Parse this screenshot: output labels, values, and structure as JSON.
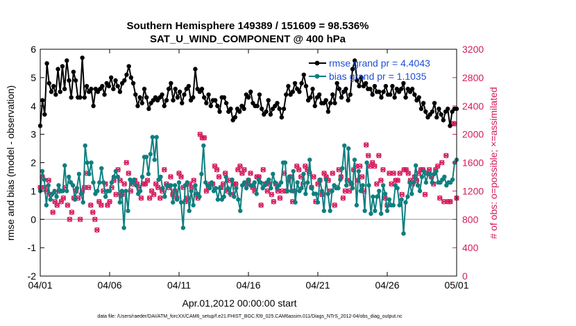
{
  "chart_data": {
    "type": "line",
    "title": "Southern Hemisphere 149389 / 151609 = 98.536%",
    "subtitle": "SAT_U_WIND_COMPONENT @ 400 hPa",
    "xlabel": "Apr.01,2012 00:00:00 start",
    "ylabel_left": "rmse and bias (model - observation)",
    "ylabel_right": "# of obs: o=possible; ×=assimilated",
    "xlim": [
      0,
      30
    ],
    "ylim_left": [
      -2,
      6
    ],
    "ylim_right": [
      0,
      3200
    ],
    "x_ticks": [
      0,
      5,
      10,
      15,
      20,
      25,
      30
    ],
    "x_tick_labels": [
      "04/01",
      "04/06",
      "04/11",
      "04/16",
      "04/21",
      "04/26",
      "05/01"
    ],
    "y_ticks_left": [
      -2,
      -1,
      0,
      1,
      2,
      3,
      4,
      5,
      6
    ],
    "y_ticks_right": [
      0,
      400,
      800,
      1200,
      1600,
      2000,
      2400,
      2800,
      3200
    ],
    "zero_line": 0,
    "series": [
      {
        "name": "rmse grand pr = 4.4043",
        "color": "#000000",
        "axis": "left",
        "values": [
          3.3,
          4.2,
          3.7,
          5.5,
          4.8,
          4.5,
          4.7,
          4.4,
          5.3,
          4.5,
          5.4,
          4.6,
          5.6,
          4.9,
          4.3,
          5.2,
          4.9,
          4.3,
          4.3,
          5.7,
          4.3,
          4.7,
          4.5,
          4.6,
          4.0,
          4.6,
          4.5,
          4.6,
          4.7,
          4.4,
          4.8,
          4.7,
          5.0,
          4.6,
          4.9,
          4.7,
          4.5,
          4.8,
          4.9,
          5.1,
          5.4,
          5.0,
          4.8,
          4.4,
          4.0,
          4.3,
          4.1,
          4.6,
          4.3,
          3.9,
          4.1,
          4.2,
          4.3,
          4.2,
          4.3,
          4.4,
          4.0,
          4.2,
          4.6,
          4.8,
          4.2,
          4.6,
          4.3,
          4.5,
          4.1,
          4.4,
          4.6,
          4.7,
          4.2,
          4.3,
          5.3,
          4.6,
          4.5,
          4.6,
          4.3,
          4.1,
          4.4,
          4.0,
          4.2,
          4.2,
          4.0,
          3.8,
          4.3,
          4.3,
          4.1,
          3.8,
          3.9,
          3.5,
          3.6,
          3.9,
          3.8,
          4.0,
          3.9,
          4.4,
          4.3,
          4.5,
          4.1,
          4.0,
          4.0,
          4.4,
          3.9,
          3.7,
          3.8,
          4.2,
          3.7,
          3.9,
          4.0,
          4.1,
          3.9,
          3.6,
          3.9,
          4.4,
          4.7,
          4.4,
          4.5,
          4.8,
          4.6,
          4.5,
          4.8,
          5.1,
          4.7,
          4.2,
          4.3,
          4.6,
          4.0,
          4.3,
          4.4,
          4.1,
          4.1,
          4.2,
          3.8,
          4.1,
          4.4,
          4.1,
          4.8,
          4.6,
          4.3,
          4.5,
          4.6,
          4.2,
          4.4,
          5.3,
          5.6,
          4.9,
          4.7,
          5.0,
          4.7,
          4.8,
          4.6,
          4.6,
          4.4,
          4.7,
          4.5,
          4.5,
          4.3,
          4.5,
          4.7,
          4.4,
          4.4,
          4.7,
          4.3,
          4.6,
          4.5,
          4.6,
          4.8,
          4.3,
          4.6,
          4.5,
          4.6,
          4.4,
          4.2,
          4.3,
          3.9,
          4.1,
          3.8,
          3.6,
          3.7,
          3.8,
          4.1,
          3.6,
          3.9,
          3.7,
          3.5,
          3.8,
          3.9,
          3.3,
          3.8,
          3.9,
          3.9
        ],
        "marker": "filled-dot"
      },
      {
        "name": "bias grand pr = 1.1035",
        "color": "#0e7f7f",
        "axis": "left",
        "values": [
          1.0,
          1.7,
          1.4,
          0.5,
          1.2,
          0.7,
          0.9,
          1.0,
          0.8,
          1.2,
          1.0,
          1.0,
          1.9,
          1.0,
          1.5,
          1.3,
          1.2,
          0.7,
          1.1,
          1.6,
          0.9,
          0.6,
          2.6,
          2.0,
          1.6,
          2.0,
          1.3,
          0.9,
          1.0,
          1.3,
          1.8,
          1.3,
          0.8,
          1.0,
          1.0,
          1.3,
          1.5,
          1.7,
          1.5,
          0.6,
          1.0,
          -0.3,
          1.0,
          0.3,
          1.4,
          1.3,
          1.4,
          1.2,
          0.9,
          1.0,
          1.5,
          2.2,
          2.2,
          1.6,
          2.3,
          2.9,
          2.1,
          2.9,
          1.4,
          1.5,
          1.1,
          0.8,
          1.2,
          1.2,
          1.2,
          0.6,
          1.2,
          0.7,
          1.3,
          0.6,
          -0.3,
          1.2,
          1.3,
          0.3,
          1.0,
          0.5,
          1.2,
          0.9,
          0.8,
          1.6,
          2.6,
          1.3,
          1.2,
          1.1,
          1.3,
          1.0,
          1.1,
          0.7,
          1.1,
          0.7,
          0.8,
          1.5,
          1.1,
          0.9,
          1.4,
          0.8,
          1.1,
          0.7,
          0.3,
          1.2,
          1.3,
          1.1,
          1.4,
          1.2,
          1.2,
          1.3,
          0.9,
          1.4,
          1.3,
          1.1,
          1.2,
          1.3,
          1.4,
          1.1,
          1.6,
          1.3,
          1.1,
          1.2,
          1.3,
          2.0,
          2.0,
          1.0,
          1.5,
          1.0,
          1.7,
          0.6,
          1.3,
          1.0,
          1.1,
          1.6,
          0.9,
          1.3,
          2.1,
          1.1,
          0.9,
          0.9,
          0.6,
          1.4,
          1.0,
          0.3,
          1.4,
          0.9,
          0.3,
          1.0,
          1.2,
          1.1,
          1.1,
          1.4,
          1.8,
          2.6,
          1.2,
          2.5,
          1.3,
          1.1,
          2.1,
          0.5,
          1.7,
          1.0,
          1.2,
          0.3,
          2.0,
          1.2,
          0.2,
          0.8,
          0.3,
          0.8,
          1.0,
          0.2,
          1.2,
          0.9,
          0.3,
          0.7,
          0.5,
          0.5,
          1.2,
          1.1,
          0.5,
          0.7,
          -0.5,
          0.6,
          0.8,
          1.3,
          0.9,
          1.3,
          1.9,
          1.2,
          1.0,
          1.5,
          1.7,
          1.3,
          1.6,
          1.6,
          1.3,
          1.6,
          1.7,
          1.3,
          1.3,
          1.4,
          1.5,
          1.2,
          1.3,
          1.3,
          1.4,
          2.0,
          2.1
        ],
        "marker": "filled-dot"
      },
      {
        "name": "obs possible",
        "color": "#d41a5c",
        "axis": "right",
        "marker": "circle",
        "values": [
          1250,
          1400,
          1250,
          1200,
          1350,
          1150,
          900,
          1050,
          1000,
          1200,
          1050,
          1100,
          1250,
          1000,
          800,
          900,
          1100,
          1200,
          1100,
          800,
          1200,
          1250,
          1450,
          1250,
          1000,
          900,
          800,
          650,
          1050,
          1000,
          1200,
          1300,
          1000,
          1050,
          1250,
          1350,
          1150,
          1500,
          1350,
          1150,
          1300,
          1600,
          1450,
          1200,
          1300,
          1350,
          1300,
          1250,
          1100,
          1300,
          1300,
          1350,
          1100,
          1200,
          1150,
          1300,
          1250,
          1100,
          1200,
          1500,
          1300,
          1250,
          1400,
          1150,
          1200,
          1100,
          1450,
          1400,
          1250,
          1050,
          1100,
          1300,
          1250,
          1350,
          1150,
          1100,
          2000,
          1950,
          1950,
          1200,
          1250,
          1300,
          1300,
          1550,
          1500,
          1400,
          1250,
          1300,
          1450,
          1200,
          1350,
          1150,
          1300,
          1300,
          1500,
          1550,
          1450,
          1500,
          1300,
          1350,
          1450,
          1250,
          1200,
          1400,
          1400,
          1000,
          1500,
          1300,
          1200,
          1300,
          1150,
          1050,
          1300,
          1200,
          1100,
          1200,
          1450,
          1200,
          1350,
          1400,
          1050,
          1200,
          1550,
          1500,
          1400,
          1300,
          1550,
          1500,
          1450,
          1250,
          1400,
          1050,
          1300,
          1350,
          1150,
          1450,
          1400,
          1350,
          1200,
          1450,
          1000,
          1250,
          1500,
          1400,
          1100,
          1200,
          1350,
          1200,
          1300,
          1500,
          1550,
          1350,
          1550,
          1400,
          1200,
          1850,
          1700,
          1550,
          1600,
          1550,
          1300,
          1700,
          1350,
          1500,
          1100,
          1000,
          1450,
          1300,
          1450,
          1350,
          1350,
          1450,
          1150,
          1500,
          1500,
          1450,
          1350,
          1300,
          1400,
          1350,
          1450,
          1500,
          1500,
          1150,
          1450,
          1500,
          1400,
          1300,
          1500,
          1550,
          1100,
          1600,
          1050,
          1700,
          1050,
          1050,
          2150,
          2150,
          1100
        ]
      },
      {
        "name": "obs assimilated",
        "color": "#d41a5c",
        "axis": "right",
        "marker": "x",
        "values": [
          1250,
          1400,
          1250,
          1200,
          1350,
          1150,
          900,
          1050,
          1000,
          1200,
          1050,
          1100,
          1250,
          1000,
          800,
          900,
          1100,
          1200,
          1100,
          800,
          1200,
          1250,
          1450,
          1250,
          1000,
          900,
          800,
          650,
          1050,
          1000,
          1200,
          1300,
          1000,
          1050,
          1250,
          1350,
          1150,
          1500,
          1350,
          1150,
          1300,
          1600,
          1450,
          1200,
          1300,
          1350,
          1300,
          1250,
          1100,
          1300,
          1300,
          1350,
          1100,
          1200,
          1150,
          1300,
          1250,
          1100,
          1200,
          1500,
          1300,
          1250,
          1400,
          1150,
          1200,
          1100,
          1450,
          1400,
          1250,
          1050,
          1100,
          1300,
          1250,
          1350,
          1150,
          1100,
          2000,
          1950,
          1950,
          1200,
          1250,
          1300,
          1300,
          1550,
          1500,
          1400,
          1250,
          1300,
          1450,
          1200,
          1350,
          1150,
          1300,
          1300,
          1500,
          1550,
          1450,
          1500,
          1300,
          1350,
          1450,
          1250,
          1200,
          1400,
          1400,
          1000,
          1500,
          1300,
          1200,
          1300,
          1150,
          1050,
          1300,
          1200,
          1100,
          1200,
          1450,
          1200,
          1350,
          1400,
          1050,
          1200,
          1550,
          1500,
          1400,
          1300,
          1550,
          1500,
          1450,
          1250,
          1400,
          1050,
          1300,
          1350,
          1150,
          1450,
          1400,
          1350,
          1200,
          1450,
          1000,
          1250,
          1500,
          1400,
          1100,
          1200,
          1350,
          1200,
          1300,
          1500,
          1550,
          1350,
          1550,
          1400,
          1200,
          1850,
          1700,
          1550,
          1600,
          1550,
          1300,
          1700,
          1350,
          1500,
          1100,
          1000,
          1450,
          1300,
          1450,
          1350,
          1350,
          1450,
          1150,
          1500,
          1500,
          1450,
          1350,
          1300,
          1400,
          1350,
          1450,
          1500,
          1500,
          1150,
          1450,
          1500,
          1400,
          1300,
          1500,
          1550,
          1100,
          1600,
          1050,
          1700,
          1050,
          1050,
          2150,
          2150,
          1100
        ]
      }
    ],
    "legend": [
      "rmse grand pr = 4.4043",
      "bias grand pr = 1.1035"
    ],
    "legend_position": "top-right",
    "footer": "data file: /Users/raeder/DAI/ATM_forcXX/CAM6_setup/f.e21.FHIST_BGC.f09_025.CAM6assim.011/Diags_NTrS_2012-04/obs_diag_output.nc"
  }
}
